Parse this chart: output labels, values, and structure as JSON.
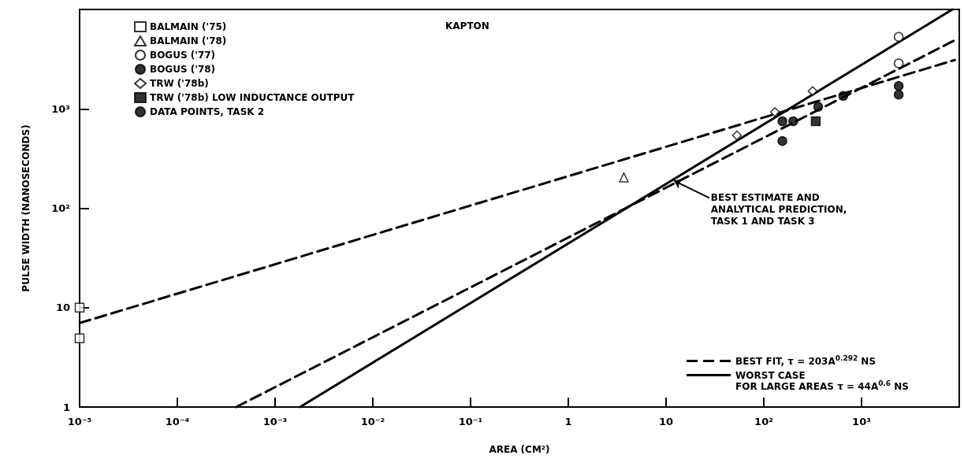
{
  "chart_data": {
    "type": "scatter",
    "title": "KAPTON",
    "xlabel": "AREA (CM²)",
    "ylabel": "PULSE WIDTH (NANOSECONDS)",
    "log": "xy",
    "grid": false,
    "legend": "top left",
    "xlim": [
      1e-05,
      10000
    ],
    "ylim": [
      1,
      10000
    ],
    "xticks": [
      {
        "value": 1e-05,
        "label": "10⁻⁵"
      },
      {
        "value": 0.0001,
        "label": "10⁻⁴"
      },
      {
        "value": 0.001,
        "label": "10⁻³"
      },
      {
        "value": 0.01,
        "label": "10⁻²"
      },
      {
        "value": 0.1,
        "label": "10⁻¹"
      },
      1,
      10,
      {
        "value": 100,
        "label": "10²"
      },
      {
        "value": 1000,
        "label": "10³"
      }
    ],
    "yticks": [
      1,
      10,
      {
        "value": 100,
        "label": "10²"
      },
      {
        "value": 1000,
        "label": "10³"
      }
    ],
    "annotations": [
      {
        "text": "BEST ESTIMATE AND\nANALYTICAL PREDICTION,\nTASK 1 AND TASK 3",
        "x": 12,
        "y": 190
      }
    ],
    "series": [
      {
        "name": "BALMAIN ('75)",
        "marker": "square",
        "color": "#ffffff",
        "x": [
          1e-05,
          1e-05
        ],
        "values": [
          10,
          4.9
        ]
      },
      {
        "name": "BALMAIN ('78)",
        "marker": "triangle",
        "color": "#ffffff",
        "x": [
          3.7
        ],
        "values": [
          204
        ]
      },
      {
        "name": "BOGUS ('77)",
        "marker": "circle",
        "color": "#ffffff",
        "x": [
          2400,
          2400
        ],
        "values": [
          5300,
          2870
        ]
      },
      {
        "name": "BOGUS ('78)",
        "marker": "circle",
        "color": "#000000",
        "x": [
          155,
          155,
          2400,
          2400
        ],
        "values": [
          475,
          750,
          1700,
          1390
        ]
      },
      {
        "name": "TRW ('78b)",
        "marker": "diamond",
        "color": "#ffffff",
        "x": [
          53,
          130,
          316
        ],
        "values": [
          540,
          930,
          1510
        ]
      },
      {
        "name": "TRW ('78b) LOW INDUCTANCE OUTPUT",
        "marker": "square",
        "color": "#000000",
        "x": [
          340
        ],
        "values": [
          750
        ]
      },
      {
        "name": "DATA POINTS, TASK 2",
        "marker": "circle",
        "color": "#000000",
        "x": [
          200,
          360,
          650
        ],
        "values": [
          750,
          1050,
          1350
        ]
      },
      {
        "name": "BEST FIT, τ = 203A$^{0.292}$ NS",
        "type": "line",
        "line_style": "dashed",
        "marker": "none",
        "color": "#000000",
        "x": [
          1e-05,
          9000
        ],
        "values": [
          7,
          3100
        ]
      },
      {
        "name": "WORST CASE\nFOR LARGE AREAS τ = 44A$^{0.6}$ NS",
        "type": "line",
        "line_style": "solid",
        "marker": "none",
        "color": "#000000",
        "x": [
          0.0018,
          8500
        ],
        "values": [
          1,
          10000
        ]
      },
      {
        "type": "line",
        "line_style": "dashed",
        "marker": "none",
        "color": "#000000",
        "x": [
          0.0004,
          9000
        ],
        "values": [
          1,
          4900
        ]
      }
    ]
  }
}
